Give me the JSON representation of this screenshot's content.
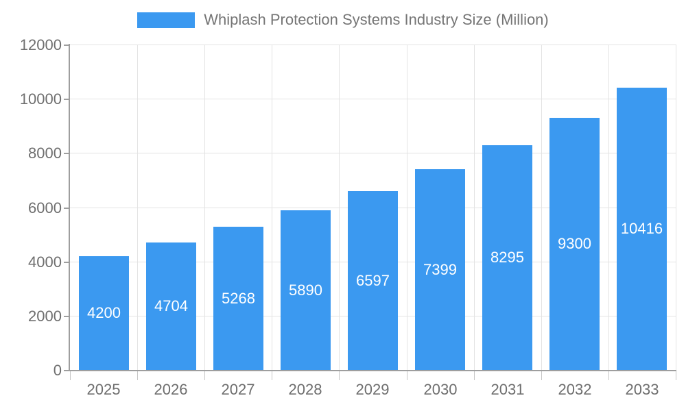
{
  "legend": {
    "label": "Whiplash Protection Systems Industry Size (Million)",
    "swatch_color": "#3B99F0"
  },
  "chart_data": {
    "type": "bar",
    "title": "Whiplash Protection Systems Industry Size (Million)",
    "series_name": "Whiplash Protection Systems Industry Size (Million)",
    "categories": [
      "2025",
      "2026",
      "2027",
      "2028",
      "2029",
      "2030",
      "2031",
      "2032",
      "2033"
    ],
    "values": [
      4200,
      4704,
      5268,
      5890,
      6597,
      7399,
      8295,
      9300,
      10416
    ],
    "bar_value_labels": [
      "4200",
      "4704",
      "5268",
      "5890",
      "6597",
      "7399",
      "8295",
      "9300",
      "10416"
    ],
    "xlabel": "",
    "ylabel": "",
    "ylim": [
      0,
      12000
    ],
    "yticks": [
      0,
      2000,
      4000,
      6000,
      8000,
      10000,
      12000
    ],
    "grid": true,
    "legend_position": "top",
    "bar_color": "#3B99F0",
    "bar_label_color": "#FFFFFF",
    "gridline_color": "#E3E3E3",
    "axis_line_color": "#9E9E9E",
    "tick_label_color": "#6E6E6E",
    "background_color": "#FFFFFF"
  }
}
